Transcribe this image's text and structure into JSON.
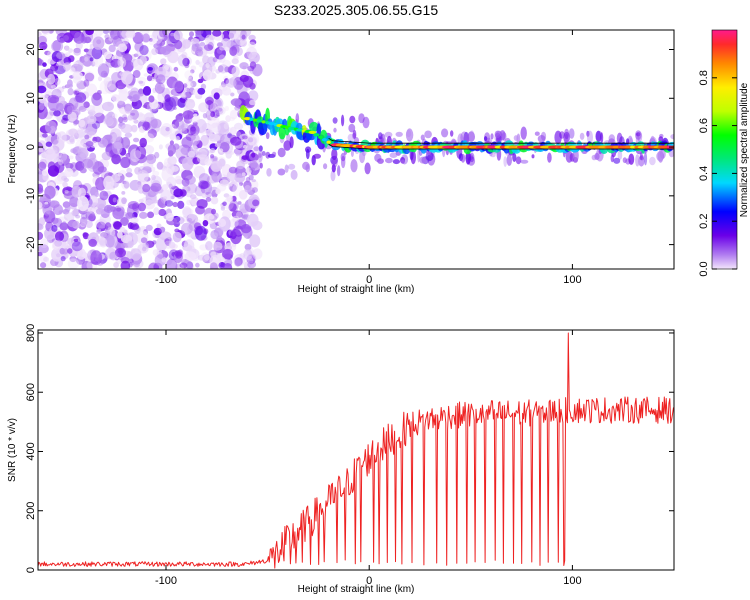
{
  "chart_data": [
    {
      "type": "heatmap",
      "title": "S233.2025.305.06.55.G15",
      "xlabel": "Height of straight line (km)",
      "ylabel": "Frequency (Hz)",
      "xlim": [
        -163,
        150
      ],
      "ylim": [
        -25,
        24
      ],
      "xticks": [
        -100,
        0,
        100
      ],
      "yticks": [
        -20,
        -10,
        0,
        10,
        20
      ],
      "colorbar": {
        "label": "Normalized spectral amplitude",
        "range": [
          0,
          1
        ],
        "ticks": [
          0.0,
          0.2,
          0.4,
          0.6,
          0.8
        ]
      },
      "noise_region_x": [
        -163,
        -55
      ],
      "ridge": [
        {
          "x": -62,
          "y": 6
        },
        {
          "x": -50,
          "y": 5
        },
        {
          "x": -40,
          "y": 4
        },
        {
          "x": -28,
          "y": 3
        },
        {
          "x": -18,
          "y": 0.5
        },
        {
          "x": 0,
          "y": 0
        },
        {
          "x": 150,
          "y": 0
        }
      ]
    },
    {
      "type": "line",
      "xlabel": "Height of straight line (km)",
      "ylabel": "SNR (10 * v/v)",
      "xlim": [
        -163,
        150
      ],
      "ylim": [
        0,
        810
      ],
      "xticks": [
        -100,
        0,
        100
      ],
      "yticks": [
        0,
        200,
        400,
        600,
        800
      ],
      "trend": [
        {
          "x": -163,
          "y": 20
        },
        {
          "x": -60,
          "y": 20
        },
        {
          "x": -48,
          "y": 35
        },
        {
          "x": -40,
          "y": 100
        },
        {
          "x": -30,
          "y": 160
        },
        {
          "x": -20,
          "y": 230
        },
        {
          "x": -10,
          "y": 300
        },
        {
          "x": 0,
          "y": 380
        },
        {
          "x": 10,
          "y": 440
        },
        {
          "x": 20,
          "y": 490
        },
        {
          "x": 30,
          "y": 510
        },
        {
          "x": 40,
          "y": 520
        },
        {
          "x": 50,
          "y": 525
        },
        {
          "x": 60,
          "y": 530
        },
        {
          "x": 70,
          "y": 530
        },
        {
          "x": 80,
          "y": 530
        },
        {
          "x": 90,
          "y": 535
        },
        {
          "x": 100,
          "y": 540
        },
        {
          "x": 120,
          "y": 540
        },
        {
          "x": 150,
          "y": 540
        }
      ],
      "dropouts_x": [
        -42,
        -39,
        -36,
        -33,
        -29,
        -25,
        -22,
        -16,
        -12,
        -7,
        -4,
        2,
        5,
        9,
        13,
        16,
        21,
        27,
        33,
        38,
        43,
        48,
        52,
        57,
        62,
        66,
        71,
        75,
        80,
        84,
        88,
        93,
        96
      ]
    }
  ]
}
